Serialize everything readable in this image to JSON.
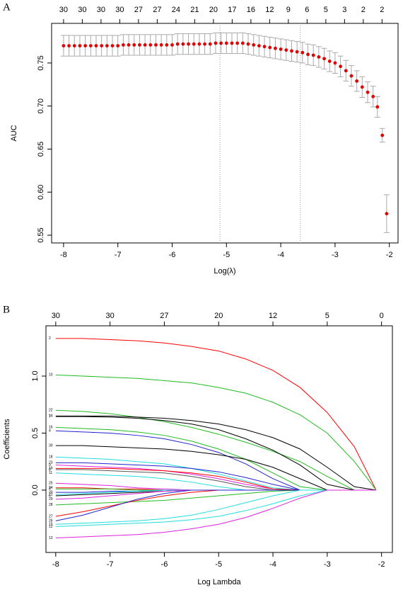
{
  "chart_data": [
    {
      "type": "errorbar",
      "panel_label": "A",
      "x_label": "Log(λ)",
      "y_label": "AUC",
      "color": "#e00000",
      "error_color": "#aaaaaa",
      "x": [
        -8,
        -7.9,
        -7.8,
        -7.7,
        -7.6,
        -7.5,
        -7.4,
        -7.3,
        -7.2,
        -7.1,
        -7,
        -6.9,
        -6.8,
        -6.7,
        -6.6,
        -6.5,
        -6.4,
        -6.3,
        -6.2,
        -6.1,
        -6,
        -5.9,
        -5.8,
        -5.7,
        -5.6,
        -5.5,
        -5.4,
        -5.3,
        -5.2,
        -5.1,
        -5,
        -4.9,
        -4.8,
        -4.7,
        -4.6,
        -4.5,
        -4.4,
        -4.3,
        -4.2,
        -4.1,
        -4,
        -3.9,
        -3.8,
        -3.7,
        -3.6,
        -3.5,
        -3.4,
        -3.3,
        -3.2,
        -3.1,
        -3,
        -2.9,
        -2.8,
        -2.7,
        -2.6,
        -2.5,
        -2.4,
        -2.3,
        -2.22,
        -2.13,
        -2.05
      ],
      "values": [
        0.77,
        0.77,
        0.77,
        0.77,
        0.77,
        0.77,
        0.77,
        0.77,
        0.77,
        0.77,
        0.77,
        0.771,
        0.771,
        0.771,
        0.771,
        0.771,
        0.771,
        0.771,
        0.771,
        0.771,
        0.771,
        0.772,
        0.772,
        0.772,
        0.772,
        0.772,
        0.772,
        0.772,
        0.773,
        0.773,
        0.773,
        0.773,
        0.773,
        0.773,
        0.772,
        0.771,
        0.77,
        0.769,
        0.768,
        0.767,
        0.766,
        0.765,
        0.764,
        0.763,
        0.762,
        0.76,
        0.759,
        0.757,
        0.755,
        0.752,
        0.75,
        0.746,
        0.741,
        0.735,
        0.729,
        0.722,
        0.716,
        0.711,
        0.699,
        0.666,
        0.575
      ],
      "errors": [
        0.012,
        0.012,
        0.012,
        0.012,
        0.012,
        0.012,
        0.012,
        0.012,
        0.012,
        0.012,
        0.012,
        0.012,
        0.012,
        0.012,
        0.012,
        0.012,
        0.012,
        0.012,
        0.012,
        0.012,
        0.012,
        0.012,
        0.012,
        0.012,
        0.012,
        0.012,
        0.012,
        0.012,
        0.012,
        0.012,
        0.012,
        0.012,
        0.012,
        0.012,
        0.012,
        0.012,
        0.012,
        0.012,
        0.012,
        0.012,
        0.012,
        0.012,
        0.012,
        0.012,
        0.012,
        0.012,
        0.012,
        0.012,
        0.012,
        0.012,
        0.012,
        0.012,
        0.012,
        0.012,
        0.012,
        0.012,
        0.012,
        0.012,
        0.012,
        0.008,
        0.022
      ],
      "xlim": [
        -8.22,
        -1.84
      ],
      "xticks": [
        -8,
        -7,
        -6,
        -5,
        -4,
        -3,
        -2
      ],
      "ylim": [
        0.541,
        0.796
      ],
      "yticks": [
        0.55,
        {
          "value": 0.6,
          "label": "0.60"
        },
        0.65,
        {
          "value": 0.7,
          "label": "0.70"
        },
        0.75
      ],
      "vlines": [
        -5.12,
        -3.64
      ],
      "top_ticks": [
        {
          "value": -8,
          "label": "30"
        },
        {
          "value": -7.655,
          "label": "30"
        },
        {
          "value": -7.31,
          "label": "30"
        },
        {
          "value": -6.965,
          "label": "30"
        },
        {
          "value": -6.62,
          "label": "27"
        },
        {
          "value": -6.275,
          "label": "27"
        },
        {
          "value": -5.93,
          "label": "24"
        },
        {
          "value": -5.585,
          "label": "21"
        },
        {
          "value": -5.24,
          "label": "20"
        },
        {
          "value": -4.895,
          "label": "17"
        },
        {
          "value": -4.55,
          "label": "16"
        },
        {
          "value": -4.205,
          "label": "12"
        },
        {
          "value": -3.86,
          "label": "9"
        },
        {
          "value": -3.515,
          "label": "6"
        },
        {
          "value": -3.17,
          "label": "5"
        },
        {
          "value": -2.825,
          "label": "3"
        },
        {
          "value": -2.48,
          "label": "2"
        },
        {
          "value": -2.135,
          "label": "2"
        }
      ]
    },
    {
      "type": "line",
      "panel_label": "B",
      "x_label": "Log Lambda",
      "y_label": "Coefficients",
      "x": [
        -8,
        -7.5,
        -7,
        -6.5,
        -6,
        -5.5,
        -5,
        -4.5,
        -4,
        -3.5,
        -3,
        -2.5,
        -2.1
      ],
      "xlim": [
        -8.18,
        -1.8
      ],
      "xticks": [
        -8,
        -7,
        -6,
        -5,
        -4,
        -3,
        -2
      ],
      "ylim": [
        -0.547,
        1.441
      ],
      "yticks": [
        {
          "value": 0,
          "label": "0.0"
        },
        0.5,
        {
          "value": 1,
          "label": "1.0"
        }
      ],
      "top_ticks": [
        {
          "value": -8,
          "label": "30"
        },
        {
          "value": -7,
          "label": "30"
        },
        {
          "value": -6,
          "label": "27"
        },
        {
          "value": -5,
          "label": "20"
        },
        {
          "value": -4,
          "label": "12"
        },
        {
          "value": -3,
          "label": "5"
        },
        {
          "value": -2,
          "label": "0"
        }
      ],
      "series": [
        {
          "name": "2",
          "color": "#ff0000",
          "values": [
            1.33,
            1.33,
            1.32,
            1.31,
            1.29,
            1.26,
            1.22,
            1.15,
            1.05,
            0.9,
            0.68,
            0.38,
            0
          ]
        },
        {
          "name": "10",
          "color": "#22bb22",
          "values": [
            1.01,
            1.0,
            0.99,
            0.98,
            0.96,
            0.94,
            0.9,
            0.85,
            0.77,
            0.66,
            0.5,
            0.25,
            0
          ]
        },
        {
          "name": "22",
          "color": "#22bb22",
          "values": [
            0.7,
            0.69,
            0.67,
            0.64,
            0.6,
            0.55,
            0.49,
            0.42,
            0.34,
            0.25,
            0.12,
            0,
            0
          ]
        },
        {
          "name": "14",
          "color": "#000000",
          "values": [
            0.65,
            0.65,
            0.65,
            0.64,
            0.63,
            0.61,
            0.58,
            0.53,
            0.46,
            0.36,
            0.2,
            0.03,
            0
          ]
        },
        {
          "name": "7",
          "color": "#000000",
          "values": [
            0.645,
            0.645,
            0.64,
            0.63,
            0.61,
            0.58,
            0.53,
            0.45,
            0.35,
            0.22,
            0.05,
            0,
            0
          ]
        },
        {
          "name": "16",
          "color": "#22bb22",
          "values": [
            0.55,
            0.54,
            0.53,
            0.51,
            0.48,
            0.43,
            0.36,
            0.27,
            0.15,
            0.03,
            0,
            0,
            0
          ]
        },
        {
          "name": "4",
          "color": "#2222cc",
          "values": [
            0.52,
            0.51,
            0.5,
            0.48,
            0.45,
            0.4,
            0.33,
            0.23,
            0.1,
            0,
            0,
            0,
            0
          ]
        },
        {
          "name": "30",
          "color": "#000000",
          "values": [
            0.39,
            0.39,
            0.38,
            0.37,
            0.36,
            0.34,
            0.31,
            0.27,
            0.2,
            0.1,
            0,
            0,
            0
          ]
        },
        {
          "name": "18",
          "color": "#22dddd",
          "values": [
            0.29,
            0.28,
            0.27,
            0.25,
            0.23,
            0.19,
            0.14,
            0.08,
            0.02,
            0,
            0,
            0,
            0
          ]
        },
        {
          "name": "23",
          "color": "#2222cc",
          "values": [
            0.24,
            0.24,
            0.23,
            0.22,
            0.21,
            0.19,
            0.16,
            0.11,
            0.05,
            0,
            0,
            0,
            0
          ]
        },
        {
          "name": "9",
          "color": "#dd22dd",
          "values": [
            0.22,
            0.21,
            0.2,
            0.19,
            0.17,
            0.14,
            0.1,
            0.05,
            0.01,
            0,
            0,
            0,
            0
          ]
        },
        {
          "name": "19",
          "color": "#ff0000",
          "values": [
            0.19,
            0.19,
            0.19,
            0.18,
            0.17,
            0.15,
            0.12,
            0.07,
            0.01,
            0,
            0,
            0,
            0
          ]
        },
        {
          "name": "8",
          "color": "#555555",
          "values": [
            0.18,
            0.18,
            0.17,
            0.16,
            0.15,
            0.12,
            0.08,
            0.03,
            0,
            0,
            0,
            0,
            0
          ]
        },
        {
          "name": "11",
          "color": "#22dddd",
          "values": [
            0.15,
            0.14,
            0.13,
            0.12,
            0.1,
            0.07,
            0.03,
            0,
            0,
            0,
            0,
            0,
            0
          ]
        },
        {
          "name": "25",
          "color": "#dd22dd",
          "values": [
            0.06,
            0.05,
            0.04,
            0.02,
            0.01,
            0,
            0,
            0,
            0,
            0,
            0,
            0,
            0
          ]
        },
        {
          "name": "24",
          "color": "#ff0000",
          "values": [
            0.02,
            0.02,
            0.01,
            0.01,
            0,
            0,
            0,
            0,
            0,
            0,
            0,
            0,
            0
          ]
        },
        {
          "name": "3",
          "color": "#22bb22",
          "values": [
            0.01,
            0.01,
            0.01,
            0,
            0,
            0,
            0,
            0,
            0,
            0,
            0,
            0,
            0
          ]
        },
        {
          "name": "20",
          "color": "#2222cc",
          "values": [
            -0.02,
            -0.02,
            -0.01,
            -0.01,
            0,
            0,
            0,
            0,
            0,
            0,
            0,
            0,
            0
          ]
        },
        {
          "name": "21",
          "color": "#22dddd",
          "values": [
            -0.04,
            -0.03,
            -0.02,
            -0.01,
            0,
            0,
            0,
            0,
            0,
            0,
            0,
            0,
            0
          ]
        },
        {
          "name": "6",
          "color": "#000000",
          "values": [
            -0.05,
            -0.04,
            -0.03,
            -0.02,
            -0.01,
            0,
            0,
            0,
            0,
            0,
            0,
            0,
            0
          ]
        },
        {
          "name": "29",
          "color": "#dd22dd",
          "values": [
            -0.08,
            -0.07,
            -0.05,
            -0.03,
            -0.01,
            0,
            0,
            0,
            0,
            0,
            0,
            0,
            0
          ]
        },
        {
          "name": "28",
          "color": "#22bb22",
          "values": [
            -0.13,
            -0.12,
            -0.11,
            -0.1,
            -0.09,
            -0.07,
            -0.05,
            -0.03,
            -0.01,
            0,
            0,
            0,
            0
          ]
        },
        {
          "name": "27",
          "color": "#ff0000",
          "values": [
            -0.23,
            -0.19,
            -0.14,
            -0.09,
            -0.05,
            -0.02,
            0,
            0,
            0,
            0,
            0,
            0,
            0
          ]
        },
        {
          "name": "26",
          "color": "#2222cc",
          "values": [
            -0.27,
            -0.22,
            -0.15,
            -0.08,
            -0.03,
            0,
            0,
            0,
            0,
            0,
            0,
            0,
            0
          ]
        },
        {
          "name": "15",
          "color": "#22dddd",
          "values": [
            -0.3,
            -0.29,
            -0.28,
            -0.27,
            -0.25,
            -0.22,
            -0.17,
            -0.11,
            -0.05,
            0,
            0,
            0,
            0
          ]
        },
        {
          "name": "12",
          "color": "#22dddd",
          "values": [
            -0.32,
            -0.31,
            -0.3,
            -0.29,
            -0.28,
            -0.26,
            -0.23,
            -0.18,
            -0.12,
            -0.05,
            0,
            0,
            0
          ]
        },
        {
          "name": "13",
          "color": "#dd22dd",
          "values": [
            -0.42,
            -0.41,
            -0.4,
            -0.39,
            -0.37,
            -0.34,
            -0.3,
            -0.24,
            -0.16,
            -0.07,
            0,
            0,
            0
          ]
        }
      ]
    }
  ]
}
